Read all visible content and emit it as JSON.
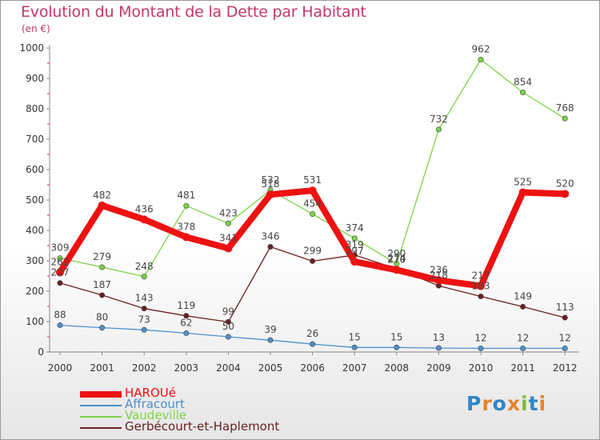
{
  "chart_data": {
    "type": "line",
    "title": "Evolution du Montant de la Dette par Habitant",
    "subtitle": "(en €)",
    "x": [
      "2000",
      "2001",
      "2002",
      "2003",
      "2004",
      "2005",
      "2006",
      "2007",
      "2008",
      "2009",
      "2010",
      "2011",
      "2012"
    ],
    "ylim": [
      0,
      1000
    ],
    "yticks": [
      0,
      100,
      200,
      300,
      400,
      500,
      600,
      700,
      800,
      900,
      1000
    ],
    "grid": false,
    "legend_position": "bottom-left",
    "series": [
      {
        "name": "HAROUé",
        "color": "#ee1111",
        "values": [
          262,
          482,
          436,
          378,
          341,
          518,
          531,
          297,
          270,
          236,
          217,
          525,
          520
        ],
        "labels": [
          "262",
          "482",
          "436",
          "378",
          "341",
          "518",
          "531",
          "297",
          "270",
          "236",
          "217",
          "525",
          "520"
        ]
      },
      {
        "name": "Affracourt",
        "color": "#4f90cc",
        "values": [
          88,
          80,
          73,
          62,
          50,
          39,
          26,
          15,
          15,
          13,
          12,
          12,
          12
        ],
        "labels": [
          "88",
          "80",
          "73",
          "62",
          "50",
          "39",
          "26",
          "15",
          "15",
          "13",
          "12",
          "12",
          "12"
        ]
      },
      {
        "name": "Vaudeville",
        "color": "#7ed348",
        "values": [
          309,
          279,
          248,
          481,
          423,
          532,
          454,
          374,
          290,
          732,
          962,
          854,
          768
        ],
        "labels": [
          "309",
          "279",
          "248",
          "481",
          "423",
          "532",
          "454",
          "374",
          "290",
          "732",
          "962",
          "854",
          "768"
        ]
      },
      {
        "name": "Gerbécourt-et-Haplemont",
        "color": "#6b2020",
        "values": [
          227,
          187,
          143,
          119,
          99,
          346,
          299,
          319,
          274,
          218,
          183,
          149,
          113
        ],
        "labels": [
          "227",
          "187",
          "143",
          "119",
          "99",
          "346",
          "299",
          "319",
          "274",
          "218",
          "183",
          "149",
          "113"
        ]
      }
    ]
  },
  "logo": {
    "text": "Proxiti"
  }
}
